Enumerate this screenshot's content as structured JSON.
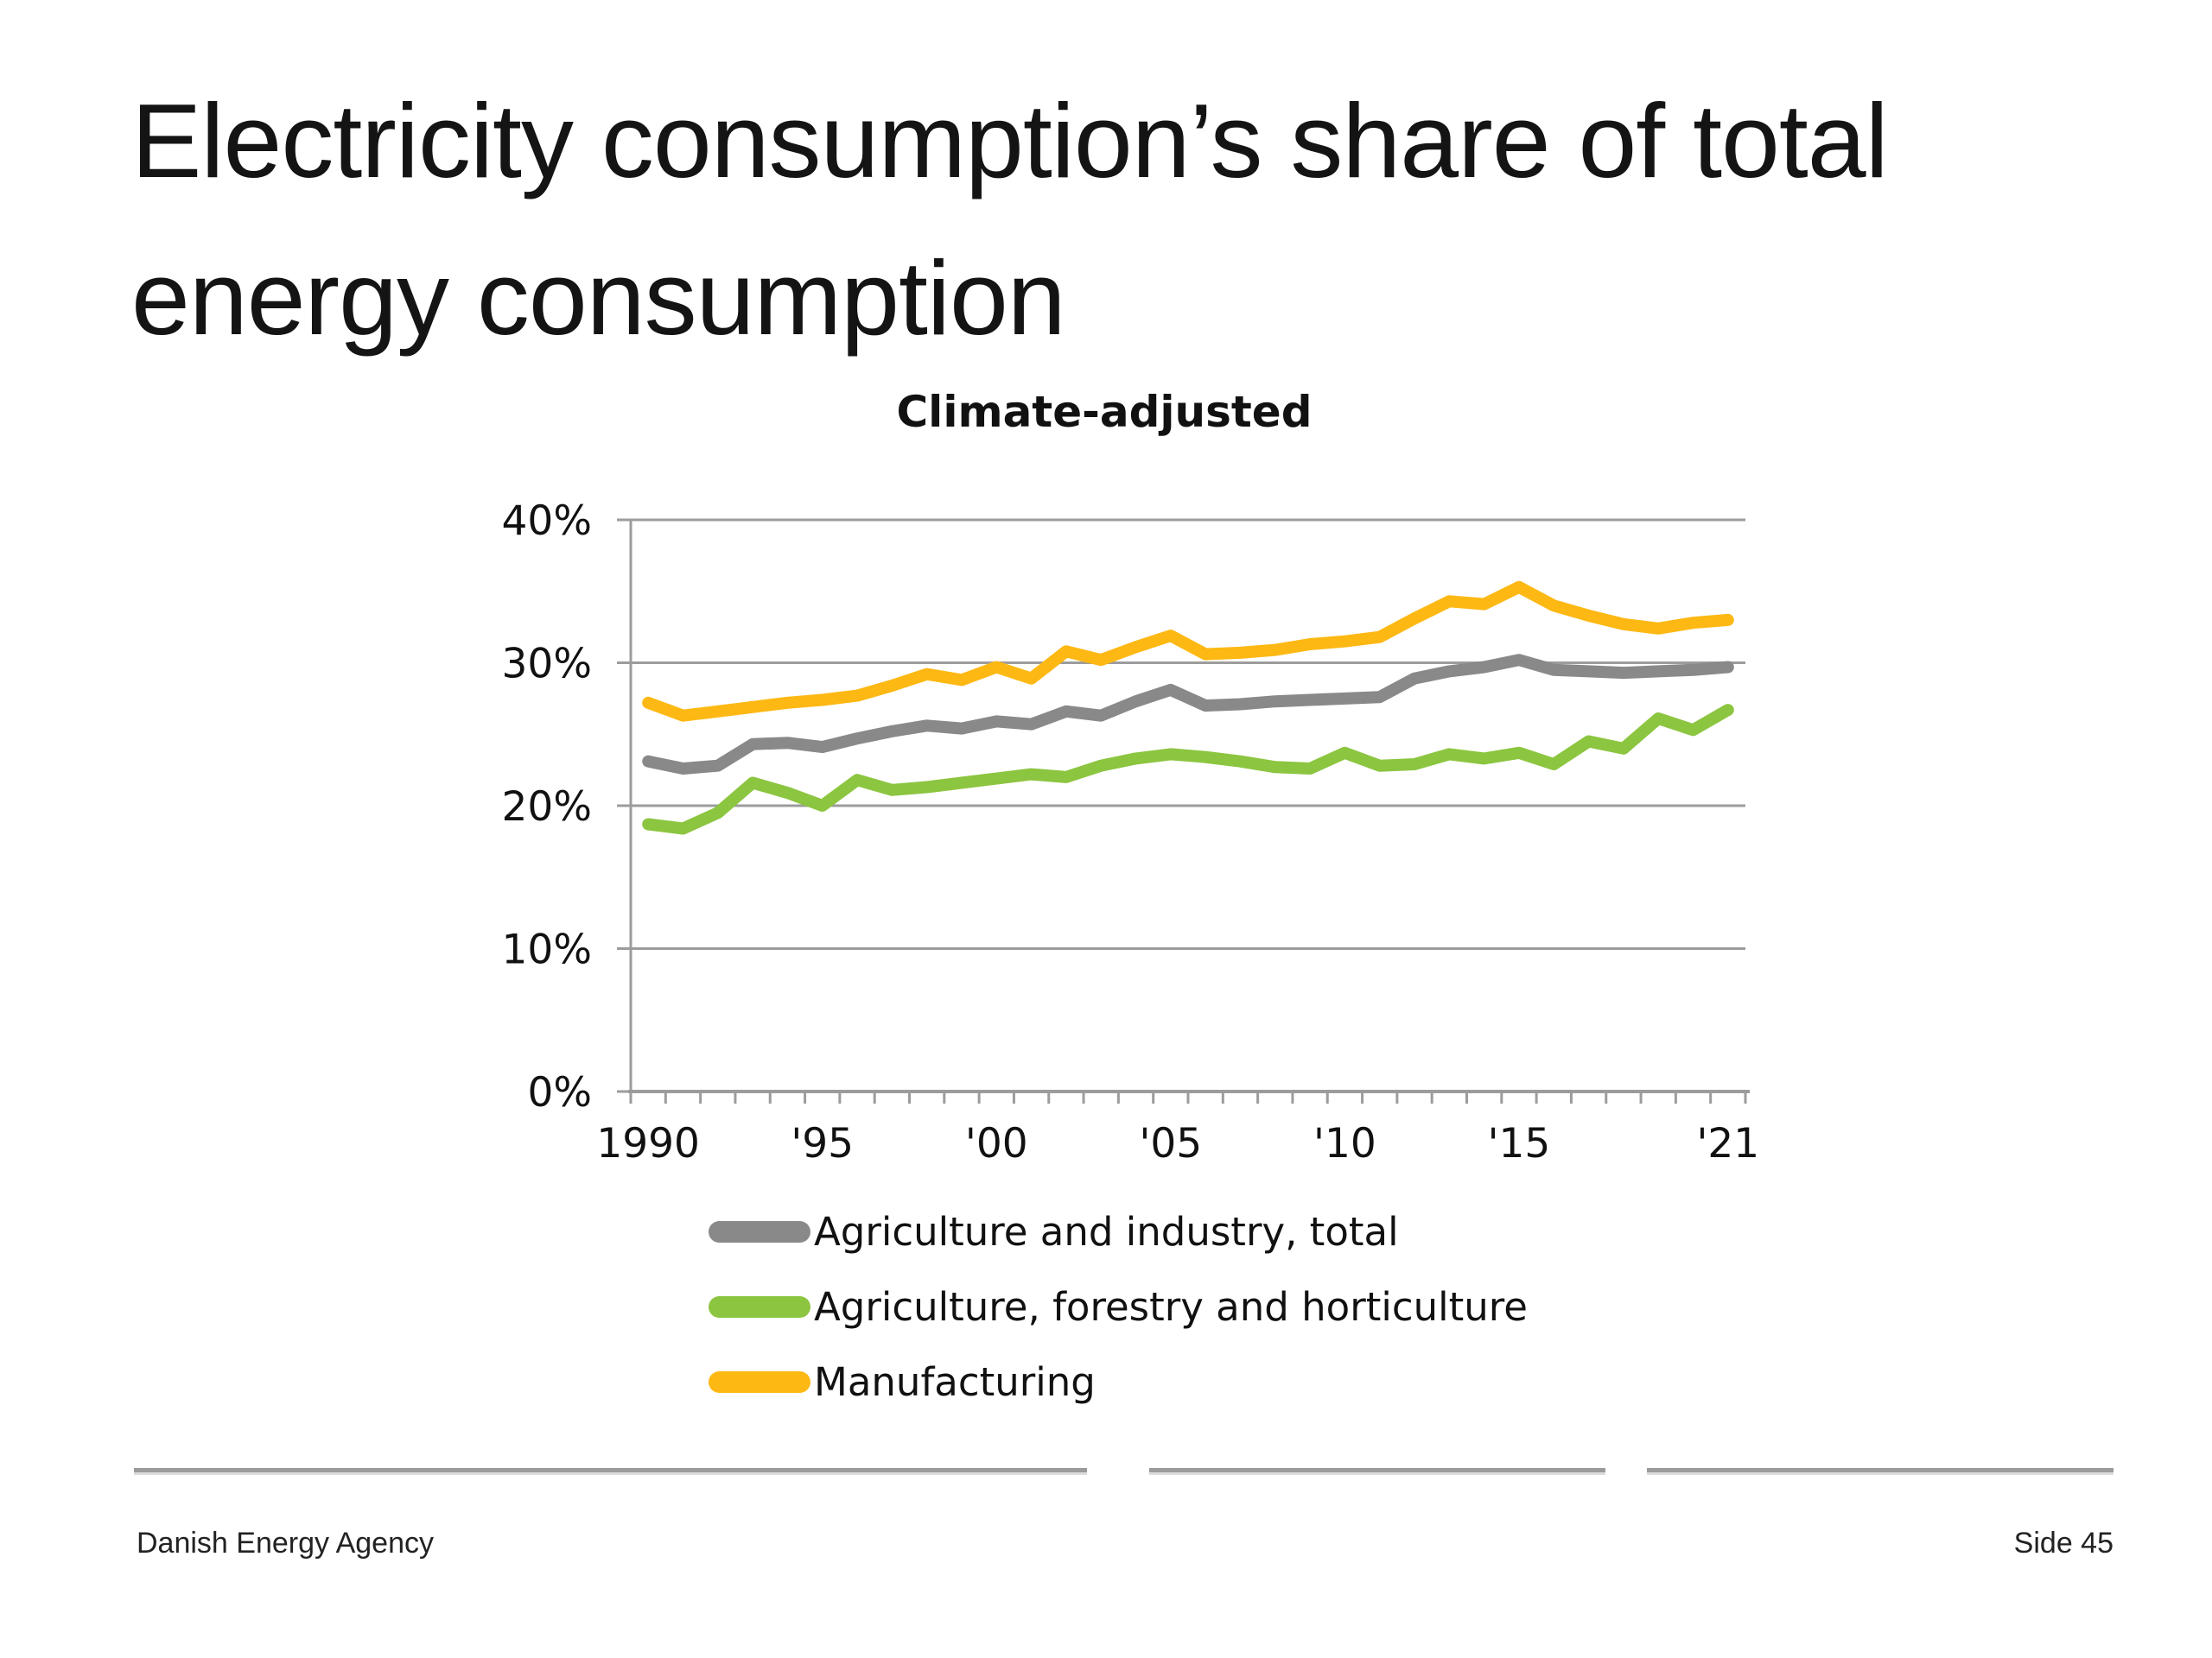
{
  "slide": {
    "title_line1": "Electricity consumption’s share of total",
    "title_line2": "energy consumption",
    "footer_left": "Danish Energy Agency",
    "footer_right": "Side 45"
  },
  "chart_data": {
    "type": "line",
    "title": "Climate-adjusted",
    "x": [
      1990,
      1991,
      1992,
      1993,
      1994,
      1995,
      1996,
      1997,
      1998,
      1999,
      2000,
      2001,
      2002,
      2003,
      2004,
      2005,
      2006,
      2007,
      2008,
      2009,
      2010,
      2011,
      2012,
      2013,
      2014,
      2015,
      2016,
      2017,
      2018,
      2019,
      2020,
      2021
    ],
    "series": [
      {
        "name": "Agriculture and industry, total",
        "color": "#898989",
        "values": [
          23.1,
          22.6,
          22.8,
          24.3,
          24.4,
          24.1,
          24.7,
          25.2,
          25.6,
          25.4,
          25.9,
          25.7,
          26.6,
          26.3,
          27.3,
          28.1,
          27.0,
          27.1,
          27.3,
          27.4,
          27.5,
          27.6,
          28.9,
          29.4,
          29.7,
          30.2,
          29.5,
          29.4,
          29.3,
          29.4,
          29.5,
          29.7
        ]
      },
      {
        "name": "Agriculture, forestry and horticulture",
        "color": "#8CC540",
        "values": [
          18.7,
          18.4,
          19.5,
          21.6,
          20.9,
          20.0,
          21.8,
          21.1,
          21.3,
          21.6,
          21.9,
          22.2,
          22.0,
          22.8,
          23.3,
          23.6,
          23.4,
          23.1,
          22.7,
          22.6,
          23.7,
          22.8,
          22.9,
          23.6,
          23.3,
          23.7,
          22.9,
          24.5,
          24.0,
          26.1,
          25.3,
          26.7
        ]
      },
      {
        "name": "Manufacturing",
        "color": "#FDB813",
        "values": [
          27.2,
          26.3,
          26.6,
          26.9,
          27.2,
          27.4,
          27.7,
          28.4,
          29.2,
          28.8,
          29.7,
          28.9,
          30.8,
          30.2,
          31.1,
          31.9,
          30.6,
          30.7,
          30.9,
          31.3,
          31.5,
          31.8,
          33.1,
          34.3,
          34.1,
          35.3,
          34.0,
          33.3,
          32.7,
          32.4,
          32.8,
          33.0
        ]
      }
    ],
    "ylim": [
      0,
      40
    ],
    "y_ticks": [
      {
        "value": 40,
        "label": "40%"
      },
      {
        "value": 30,
        "label": "30%"
      },
      {
        "value": 20,
        "label": "20%"
      },
      {
        "value": 10,
        "label": "10%"
      },
      {
        "value": 0,
        "label": "0%"
      }
    ],
    "x_ticks": [
      {
        "year": 1990,
        "label": "1990"
      },
      {
        "year": 1995,
        "label": "'95"
      },
      {
        "year": 2000,
        "label": "'00"
      },
      {
        "year": 2005,
        "label": "'05"
      },
      {
        "year": 2010,
        "label": "'10"
      },
      {
        "year": 2015,
        "label": "'15"
      },
      {
        "year": 2021,
        "label": "'21"
      }
    ],
    "grid": "horizontal",
    "grid_color": "#9c9c9c",
    "legend_position": "bottom-left",
    "line_width": 14
  }
}
